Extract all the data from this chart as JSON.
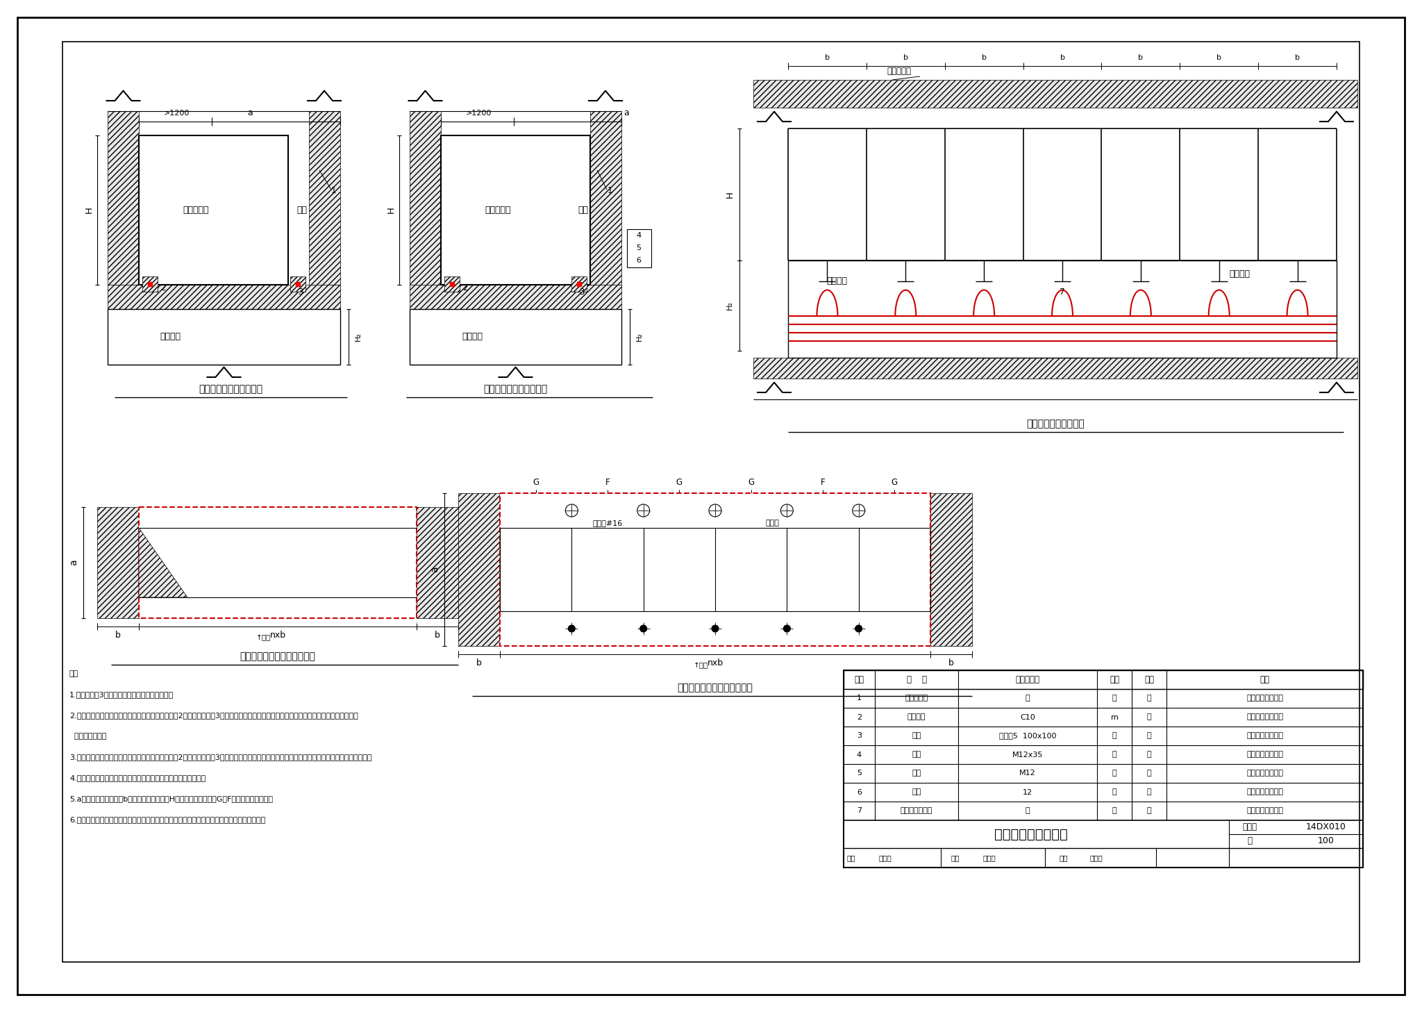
{
  "title": "低压配电柜固定方式",
  "drawing_number": "14DX010",
  "page": "100",
  "bg_color": "#ffffff",
  "border_color": "#000000",
  "red_color": "#cc0000",
  "gray_fc": "#e8e8e8",
  "notes": [
    "注：",
    "1.底板（零件3）应在土建施工基础时预先埋入。",
    "2.低压配电柜焊接固定安装时，先将底座槽钢（零件2）与底板（零件3）焊接，应保持底座槽钢平整，然后将低压配电柜与底座槽钢沿周边",
    "  断续焊接固定。",
    "3.低压配电柜螺栓固定安装时，先将底座槽钢（零件2）与底板（零件3）焊接，应保持底座槽钢平整，然后将低压配电柜与底座槽钢用螺栓固定。",
    "4.低压配电柜下面基础的形式和电缆夹具图由具体工程设计确定。",
    "5.a为低压配电柜柜宽，b为低压配电柜柜宽，H为低压配电柜高度，G、F根据具体请备确定。",
    "6.低压配电柜配线电缆下出线一般采用电缆支架敷设方式，电缆支架规格由具体工程设计确定。"
  ],
  "table_headers": [
    "编号",
    "名    称",
    "型号及规格",
    "单位",
    "数量",
    "备注"
  ],
  "table_rows": [
    [
      "1",
      "低压配电柜",
      "－",
      "台",
      "－",
      "具体工程设计确定"
    ],
    [
      "2",
      "底座槽钢",
      "C10",
      "m",
      "－",
      "具体工程设计确定"
    ],
    [
      "3",
      "底板",
      "钢板厚5  100x100",
      "块",
      "－",
      "具体工程设计确定"
    ],
    [
      "4",
      "螺栓",
      "M12x35",
      "个",
      "－",
      "具体工程设计确定"
    ],
    [
      "5",
      "螺母",
      "M12",
      "个",
      "－",
      "具体工程设计确定"
    ],
    [
      "6",
      "垫圈",
      "12",
      "个",
      "－",
      "具体工程设计确定"
    ],
    [
      "7",
      "电缆支架及立柱",
      "－",
      "根",
      "－",
      "具体工程设计确定"
    ]
  ],
  "section_titles": [
    "低压配电柜焊接固定剖面",
    "低压配电柜螺栓固定剖面",
    "低压电缆出线固定剖面",
    "低压配电柜焊接固定底座平面",
    "低压配电柜螺栓固定底座平面"
  ]
}
